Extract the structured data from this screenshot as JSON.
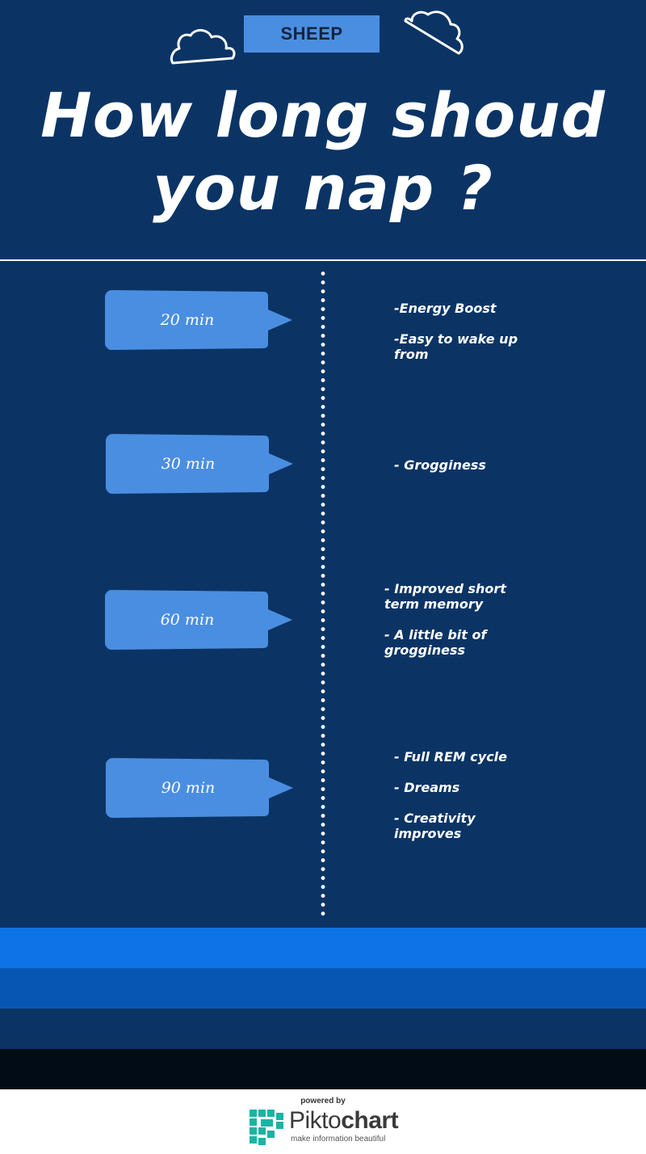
{
  "header": {
    "tag": "SHEEP",
    "title_line1": "How long shoud",
    "title_line2": "you nap ?"
  },
  "timeline": [
    {
      "duration": "20 min",
      "notes": [
        "-Energy Boost",
        " -Easy to wake up\nfrom"
      ]
    },
    {
      "duration": "30 min",
      "notes": [
        "- Grogginess"
      ]
    },
    {
      "duration": "60 min",
      "notes": [
        "- Improved short\nterm memory",
        " - A little bit of\ngrogginess"
      ]
    },
    {
      "duration": "90 min",
      "notes": [
        "- Full REM cycle",
        "- Dreams",
        "- Creativity\nimproves"
      ]
    }
  ],
  "footer": {
    "powered_by": "powered by",
    "brand_light": "Pikto",
    "brand_bold": "chart",
    "tagline": "make information beautiful"
  },
  "colors": {
    "background": "#0b3465",
    "bubble": "#4a8ee1",
    "band_light": "#0d73e6",
    "band_mid": "#0756b4",
    "band_dark": "#020c17",
    "brand_teal": "#1cb3a3"
  }
}
